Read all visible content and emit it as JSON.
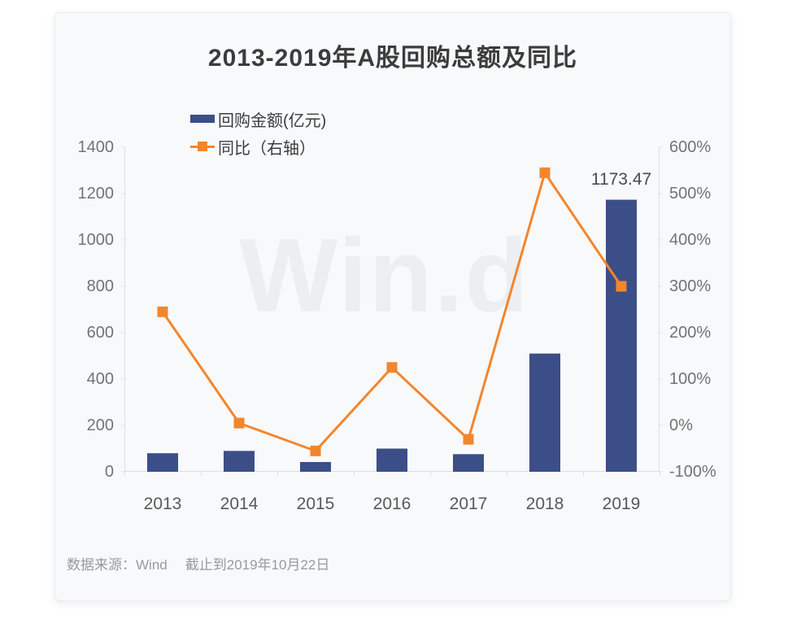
{
  "title": "2013-2019年A股回购总额及同比",
  "watermark": "Win.d",
  "footer": {
    "source": "数据来源：Wind",
    "cutoff": "截止到2019年10月22日"
  },
  "colors": {
    "bar": "#3c4e87",
    "line": "#f2862d",
    "axis": "#dcdee3",
    "card_background": "#f8f9fb"
  },
  "chart_data": {
    "type": "bar",
    "subtype": "bar+line-dual-axis",
    "title": "2013-2019年A股回购总额及同比",
    "categories": [
      "2013",
      "2014",
      "2015",
      "2016",
      "2017",
      "2018",
      "2019"
    ],
    "series": [
      {
        "name": "回购金额(亿元)",
        "type": "bar",
        "axis": "left",
        "color": "#3c4e87",
        "values": [
          80,
          90,
          42,
          100,
          76,
          510,
          1173.47
        ]
      },
      {
        "name": "同比（右轴）",
        "type": "line",
        "axis": "right",
        "color": "#f2862d",
        "unit": "%",
        "values": [
          245,
          5,
          -55,
          125,
          -30,
          545,
          300
        ]
      }
    ],
    "left_axis": {
      "min": 0,
      "max": 1400,
      "step": 200,
      "tick_labels": [
        "1400",
        "1200",
        "1000",
        "800",
        "600",
        "400",
        "200",
        "0"
      ]
    },
    "right_axis": {
      "min": -100,
      "max": 600,
      "step": 100,
      "tick_labels": [
        "600%",
        "500%",
        "400%",
        "300%",
        "200%",
        "100%",
        "0%",
        "-100%"
      ]
    },
    "annotation": {
      "text": "1173.47",
      "category_index": 6
    },
    "legend_position": "top-left",
    "grid": false
  }
}
